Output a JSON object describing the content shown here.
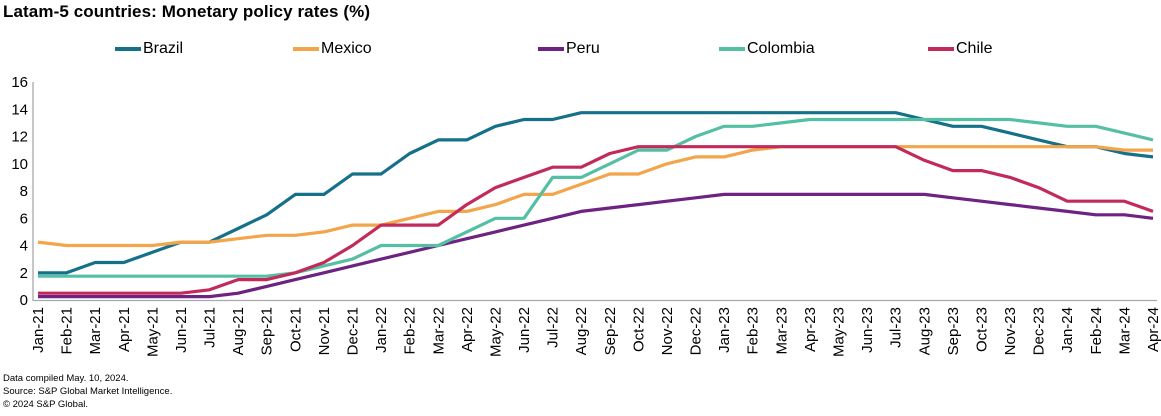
{
  "header": {
    "title": "Latam-5 countries: Monetary policy rates (%)"
  },
  "chart_data": {
    "type": "line",
    "title": "Latam-5 countries: Monetary policy rates (%)",
    "xlabel": "",
    "ylabel": "",
    "ylim": [
      0,
      16
    ],
    "yticks": [
      0,
      2,
      4,
      6,
      8,
      10,
      12,
      14,
      16
    ],
    "grid": false,
    "legend_position": "top",
    "x_labels": [
      "Jan-21",
      "Feb-21",
      "Mar-21",
      "Apr-21",
      "May-21",
      "Jun-21",
      "Jul-21",
      "Aug-21",
      "Sep-21",
      "Oct-21",
      "Nov-21",
      "Dec-21",
      "Jan-22",
      "Feb-22",
      "Mar-22",
      "Apr-22",
      "May-22",
      "Jun-22",
      "Jul-22",
      "Aug-22",
      "Sep-22",
      "Oct-22",
      "Nov-22",
      "Dec-22",
      "Jan-23",
      "Feb-23",
      "Mar-23",
      "Apr-23",
      "May-23",
      "Jun-23",
      "Jul-23",
      "Aug-23",
      "Sep-23",
      "Oct-23",
      "Nov-23",
      "Dec-23",
      "Jan-24",
      "Feb-24",
      "Mar-24",
      "Apr-24"
    ],
    "series": [
      {
        "name": "Brazil",
        "color": "#15708A",
        "values": [
          2.0,
          2.0,
          2.75,
          2.75,
          3.5,
          4.25,
          4.25,
          5.25,
          6.25,
          7.75,
          7.75,
          9.25,
          9.25,
          10.75,
          11.75,
          11.75,
          12.75,
          13.25,
          13.25,
          13.75,
          13.75,
          13.75,
          13.75,
          13.75,
          13.75,
          13.75,
          13.75,
          13.75,
          13.75,
          13.75,
          13.75,
          13.25,
          12.75,
          12.75,
          12.25,
          11.75,
          11.25,
          11.25,
          10.75,
          10.5
        ]
      },
      {
        "name": "Mexico",
        "color": "#F2A54A",
        "values": [
          4.25,
          4.0,
          4.0,
          4.0,
          4.0,
          4.25,
          4.25,
          4.5,
          4.75,
          4.75,
          5.0,
          5.5,
          5.5,
          6.0,
          6.5,
          6.5,
          7.0,
          7.75,
          7.75,
          8.5,
          9.25,
          9.25,
          10.0,
          10.5,
          10.5,
          11.0,
          11.25,
          11.25,
          11.25,
          11.25,
          11.25,
          11.25,
          11.25,
          11.25,
          11.25,
          11.25,
          11.25,
          11.25,
          11.0,
          11.0
        ]
      },
      {
        "name": "Peru",
        "color": "#6E2383",
        "values": [
          0.25,
          0.25,
          0.25,
          0.25,
          0.25,
          0.25,
          0.25,
          0.5,
          1.0,
          1.5,
          2.0,
          2.5,
          3.0,
          3.5,
          4.0,
          4.5,
          5.0,
          5.5,
          6.0,
          6.5,
          6.75,
          7.0,
          7.25,
          7.5,
          7.75,
          7.75,
          7.75,
          7.75,
          7.75,
          7.75,
          7.75,
          7.75,
          7.5,
          7.25,
          7.0,
          6.75,
          6.5,
          6.25,
          6.25,
          6.0
        ]
      },
      {
        "name": "Colombia",
        "color": "#55BFA4",
        "values": [
          1.75,
          1.75,
          1.75,
          1.75,
          1.75,
          1.75,
          1.75,
          1.75,
          1.75,
          2.0,
          2.5,
          3.0,
          4.0,
          4.0,
          4.0,
          5.0,
          6.0,
          6.0,
          9.0,
          9.0,
          10.0,
          11.0,
          11.0,
          12.0,
          12.75,
          12.75,
          13.0,
          13.25,
          13.25,
          13.25,
          13.25,
          13.25,
          13.25,
          13.25,
          13.25,
          13.0,
          12.75,
          12.75,
          12.25,
          11.75
        ]
      },
      {
        "name": "Chile",
        "color": "#C22A5A",
        "values": [
          0.5,
          0.5,
          0.5,
          0.5,
          0.5,
          0.5,
          0.75,
          1.5,
          1.5,
          2.0,
          2.75,
          4.0,
          5.5,
          5.5,
          5.5,
          7.0,
          8.25,
          9.0,
          9.75,
          9.75,
          10.75,
          11.25,
          11.25,
          11.25,
          11.25,
          11.25,
          11.25,
          11.25,
          11.25,
          11.25,
          11.25,
          10.25,
          9.5,
          9.5,
          9.0,
          8.25,
          7.25,
          7.25,
          7.25,
          6.5
        ]
      }
    ]
  },
  "footer": {
    "compiled": "Data compiled May. 10, 2024.",
    "source": "Source: S&P Global Market Intelligence.",
    "copyright": "© 2024 S&P Global."
  }
}
